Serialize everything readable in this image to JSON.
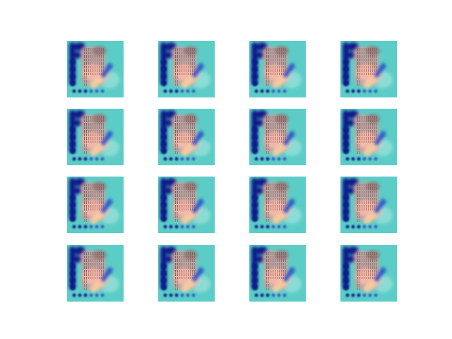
{
  "figure": {
    "rows": 4,
    "cols": 4,
    "palette": {
      "background": "#5ccdc6",
      "navy": "#0a1a8a",
      "blue": "#2f5ec8",
      "pink": "#f3b7a8",
      "rose": "#d99a98",
      "peach": "#f6c9a0",
      "brown": "#7a5a5a",
      "lightcyan": "#a8e6e0"
    }
  }
}
